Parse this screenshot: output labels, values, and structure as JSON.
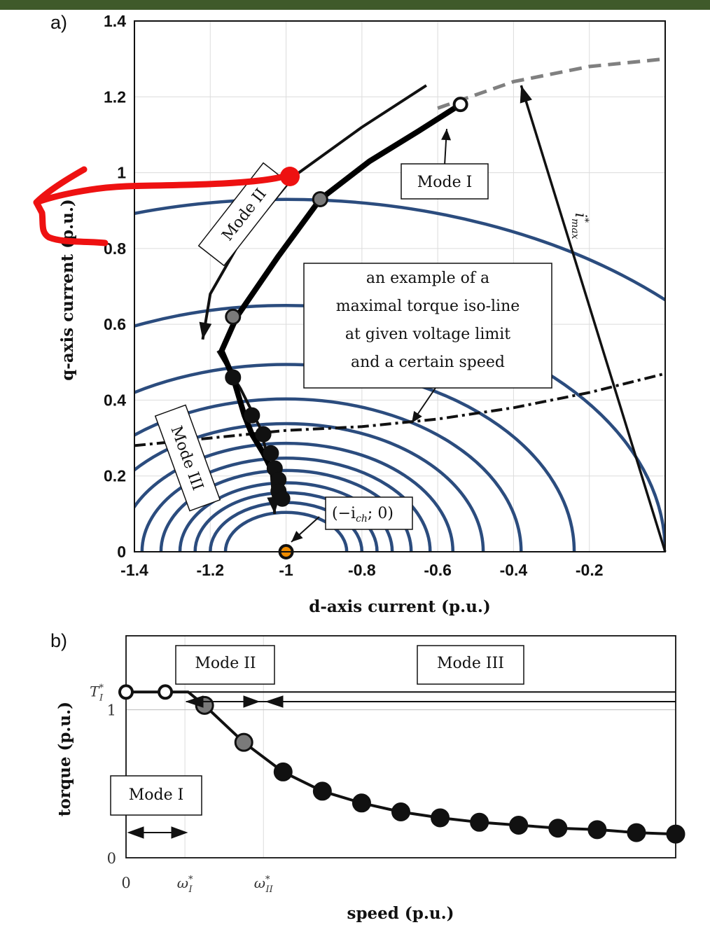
{
  "chart_data": [
    {
      "panel_label": "a)",
      "type": "line",
      "xlabel": "d-axis current (p.u.)",
      "ylabel": "q-axis current (p.u.)",
      "xlim": [
        -1.4,
        0
      ],
      "ylim": [
        0,
        1.4
      ],
      "x_ticks": [
        "-1.4",
        "-1.2",
        "-1",
        "-0.8",
        "-0.6",
        "-0.4",
        "-0.2"
      ],
      "y_ticks": [
        "0",
        "0.2",
        "0.4",
        "0.6",
        "0.8",
        "1",
        "1.2",
        "1.4"
      ],
      "grid": true,
      "voltage_limit_ellipses": {
        "color": "#2b4c7e",
        "center": [
          -1,
          0
        ],
        "y_over_x_ratio": 0.65,
        "radii_d": [
          0.16,
          0.2,
          0.24,
          0.28,
          0.33,
          0.38,
          0.44,
          0.52,
          0.62,
          0.76,
          1.0,
          1.43
        ]
      },
      "current_limit_circle": {
        "color": "#808080",
        "radius": 1.3,
        "visible_x": [
          -0.6,
          -0.4,
          -0.2,
          0
        ],
        "visible_y": [
          1.17,
          1.24,
          1.28,
          1.3
        ]
      },
      "trajectory": {
        "color": "#000000",
        "x": [
          -0.54,
          -0.65,
          -0.78,
          -0.91,
          -1.02,
          -1.13,
          -1.17,
          -1.14,
          -1.11,
          -1.09,
          -1.06,
          -1.04,
          -1.02,
          -1.01
        ],
        "y": [
          1.18,
          1.11,
          1.03,
          0.93,
          0.78,
          0.62,
          0.53,
          0.46,
          0.36,
          0.31,
          0.26,
          0.22,
          0.16,
          0.13
        ]
      },
      "markers": [
        {
          "x": -0.54,
          "y": 1.18,
          "style": "open"
        },
        {
          "x": -0.91,
          "y": 0.93,
          "style": "grey"
        },
        {
          "x": -1.14,
          "y": 0.62,
          "style": "grey"
        },
        {
          "x": -1.14,
          "y": 0.46,
          "style": "filled"
        },
        {
          "x": -1.09,
          "y": 0.36,
          "style": "filled"
        },
        {
          "x": -1.06,
          "y": 0.31,
          "style": "filled"
        },
        {
          "x": -1.04,
          "y": 0.26,
          "style": "filled"
        },
        {
          "x": -1.03,
          "y": 0.22,
          "style": "filled"
        },
        {
          "x": -1.02,
          "y": 0.19,
          "style": "filled"
        },
        {
          "x": -1.02,
          "y": 0.16,
          "style": "filled"
        },
        {
          "x": -1.01,
          "y": 0.14,
          "style": "filled"
        },
        {
          "x": -1.0,
          "y": 0.0,
          "style": "orange"
        }
      ],
      "iso_torque_line": {
        "style": "dash-dot",
        "x": [
          -1.4,
          -1.2,
          -1.0,
          -0.8,
          -0.6,
          -0.4,
          -0.2,
          0.0
        ],
        "y": [
          0.28,
          0.3,
          0.32,
          0.33,
          0.35,
          0.38,
          0.42,
          0.47
        ]
      },
      "mode_arrows": [
        {
          "x": [
            -0.63,
            -0.8,
            -0.98,
            -1.12,
            -1.2,
            -1.22
          ],
          "y": [
            1.23,
            1.12,
            0.99,
            0.82,
            0.68,
            0.56
          ]
        },
        {
          "x": [
            -1.18,
            -1.12,
            -1.07,
            -1.04,
            -1.03
          ],
          "y": [
            0.53,
            0.43,
            0.33,
            0.22,
            0.1
          ]
        },
        {
          "x": [
            0,
            -0.38
          ],
          "y": [
            0.0,
            1.23
          ]
        }
      ],
      "annotations": {
        "mode_i": "Mode I",
        "mode_ii": "Mode II",
        "mode_iii": "Mode III",
        "iso_line_note": [
          "an example of a",
          "maximal torque iso-line",
          "at given voltage limit",
          "and a certain speed"
        ],
        "ich_point": "(−i",
        "ich_point_sub": "ch",
        "ich_point_tail": "; 0)",
        "imax_label": "i",
        "imax_sup": "*",
        "imax_sub": "max"
      },
      "overlay_mark": {
        "color": "#ee1111",
        "shape": "hand-drawn arrow"
      }
    },
    {
      "panel_label": "b)",
      "type": "line",
      "xlabel": "speed (p.u.)",
      "ylabel": "torque (p.u.)",
      "x_ticks": [
        "0",
        "ω",
        "ω"
      ],
      "x_tick_subs": [
        "",
        "I",
        "II"
      ],
      "x_tick_sups": [
        "",
        "*",
        "*"
      ],
      "x_tick_values": [
        0,
        0.9,
        2.1
      ],
      "y_ticks": [
        "0",
        "1"
      ],
      "y_extra_tick": "T",
      "y_extra_tick_sub": "I",
      "y_extra_tick_sup": "*",
      "y_extra_value": 1.12,
      "xlim": [
        0,
        8.4
      ],
      "ylim": [
        0,
        1.5
      ],
      "torque_curve": {
        "x": [
          0,
          0.6,
          0.95,
          1.2,
          1.8,
          2.4,
          3.0,
          3.6,
          4.2,
          4.8,
          5.4,
          6.0,
          6.6,
          7.2,
          7.8,
          8.4
        ],
        "y": [
          1.12,
          1.12,
          1.12,
          1.03,
          0.78,
          0.58,
          0.45,
          0.37,
          0.31,
          0.27,
          0.24,
          0.22,
          0.2,
          0.19,
          0.17,
          0.16
        ],
        "open_markers": 2
      },
      "mode_labels": [
        "Mode I",
        "Mode II",
        "Mode III"
      ]
    }
  ]
}
